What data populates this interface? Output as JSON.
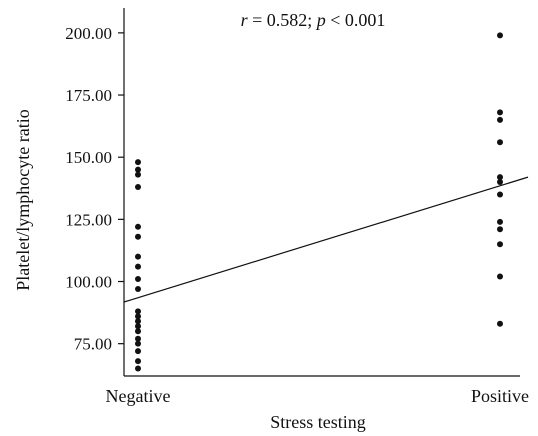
{
  "chart_data": {
    "type": "scatter",
    "annotation_parts": [
      "r",
      " = 0.582; ",
      "p",
      " < 0.001"
    ],
    "xlabel": "Stress testing",
    "ylabel": "Platelet/lymphocyte ratio",
    "categories": [
      "Negative",
      "Positive"
    ],
    "ylim": [
      62,
      210
    ],
    "yticks": [
      75,
      100,
      125,
      150,
      175,
      200
    ],
    "ytick_labels": [
      "75.00",
      "100.00",
      "125.00",
      "150.00",
      "175.00",
      "200.00"
    ],
    "grid": false,
    "series": [
      {
        "category": "Negative",
        "values": [
          148,
          145,
          143,
          138,
          122,
          118,
          110,
          106,
          101,
          97,
          88,
          86,
          84,
          82,
          80,
          77,
          75,
          72,
          68,
          65
        ]
      },
      {
        "category": "Positive",
        "values": [
          199,
          168,
          165,
          156,
          142,
          140,
          135,
          124,
          121,
          115,
          102,
          83
        ]
      }
    ],
    "fit_line": {
      "start": [
        "Negative",
        93.5
      ],
      "end": [
        "Positive",
        138.5
      ]
    },
    "colors": {
      "points": "#111111",
      "axes": "#111111",
      "line": "#111111"
    }
  }
}
